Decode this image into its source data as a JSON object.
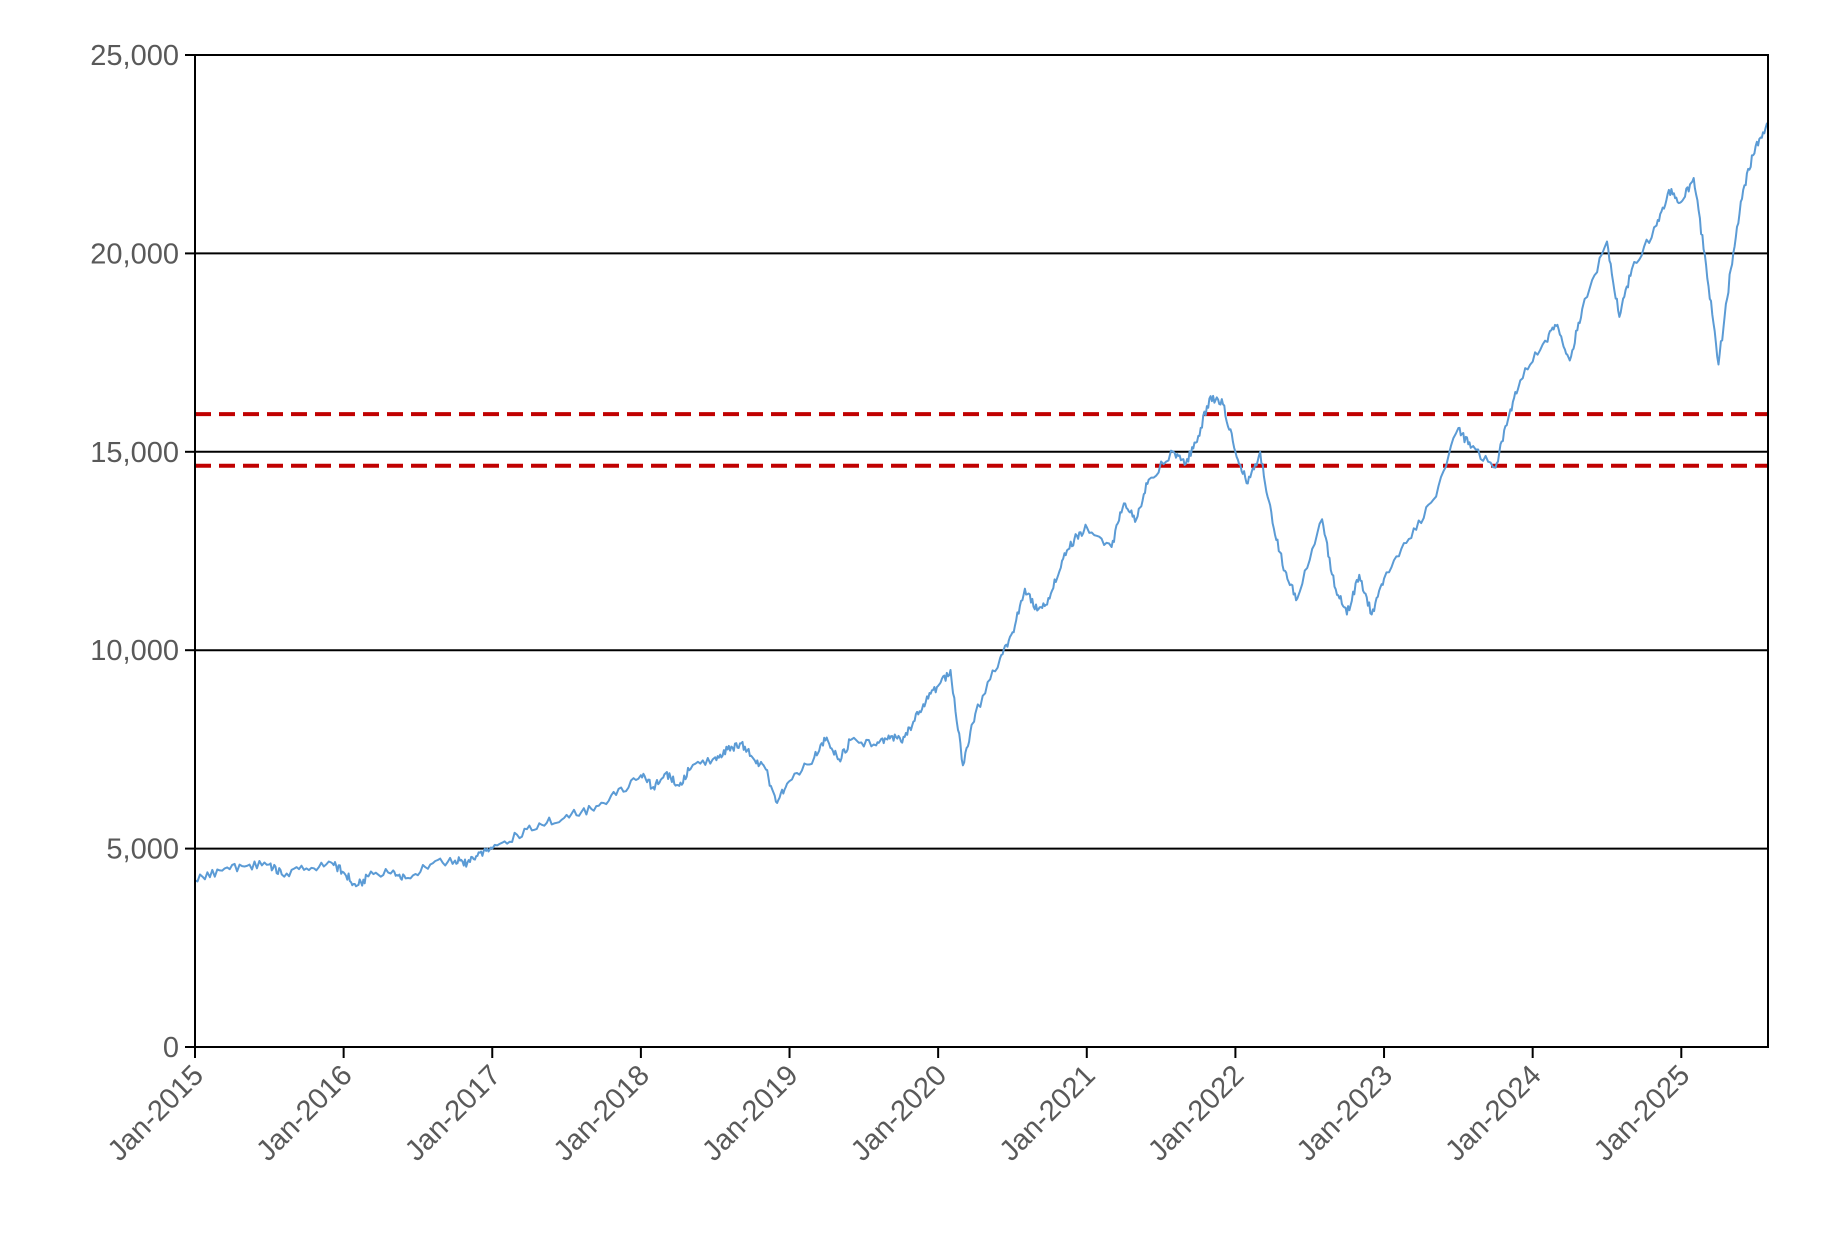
{
  "chart_data": {
    "type": "line",
    "title": "",
    "xlabel": "",
    "ylabel": "",
    "ylim": [
      0,
      25000
    ],
    "y_ticks": [
      0,
      5000,
      10000,
      15000,
      20000,
      25000
    ],
    "y_tick_labels": [
      "0",
      "5,000",
      "10,000",
      "15,000",
      "20,000",
      "25,000"
    ],
    "x_range": [
      "2015-01",
      "2025-08"
    ],
    "x_ticks": [
      "2015-01",
      "2016-01",
      "2017-01",
      "2018-01",
      "2019-01",
      "2020-01",
      "2021-01",
      "2022-01",
      "2023-01",
      "2024-01",
      "2025-01"
    ],
    "x_tick_labels": [
      "Jan-2015",
      "Jan-2016",
      "Jan-2017",
      "Jan-2018",
      "Jan-2019",
      "Jan-2020",
      "Jan-2021",
      "Jan-2022",
      "Jan-2023",
      "Jan-2024",
      "Jan-2025"
    ],
    "grid": "horizontal",
    "legend": "none",
    "series": [
      {
        "color": "#5b9bd5",
        "points": [
          [
            "2015-01",
            4200
          ],
          [
            "2015-03",
            4450
          ],
          [
            "2015-05",
            4550
          ],
          [
            "2015-07",
            4600
          ],
          [
            "2015-08",
            4350
          ],
          [
            "2015-10",
            4500
          ],
          [
            "2015-12",
            4650
          ],
          [
            "2016-01",
            4400
          ],
          [
            "2016-02",
            4050
          ],
          [
            "2016-03",
            4300
          ],
          [
            "2016-05",
            4450
          ],
          [
            "2016-06",
            4250
          ],
          [
            "2016-08",
            4600
          ],
          [
            "2016-10",
            4700
          ],
          [
            "2016-11",
            4650
          ],
          [
            "2016-12",
            4900
          ],
          [
            "2017-01",
            5000
          ],
          [
            "2017-03",
            5350
          ],
          [
            "2017-05",
            5600
          ],
          [
            "2017-07",
            5850
          ],
          [
            "2017-09",
            6000
          ],
          [
            "2017-11",
            6350
          ],
          [
            "2018-01",
            6850
          ],
          [
            "2018-02",
            6550
          ],
          [
            "2018-03",
            6900
          ],
          [
            "2018-04",
            6600
          ],
          [
            "2018-05",
            7000
          ],
          [
            "2018-07",
            7300
          ],
          [
            "2018-08",
            7500
          ],
          [
            "2018-09",
            7650
          ],
          [
            "2018-10",
            7300
          ],
          [
            "2018-11",
            7050
          ],
          [
            "2018-12",
            6150
          ],
          [
            "2019-01",
            6700
          ],
          [
            "2019-03",
            7300
          ],
          [
            "2019-04",
            7800
          ],
          [
            "2019-05",
            7250
          ],
          [
            "2019-06",
            7750
          ],
          [
            "2019-08",
            7600
          ],
          [
            "2019-09",
            7850
          ],
          [
            "2019-10",
            7700
          ],
          [
            "2019-11",
            8200
          ],
          [
            "2019-12",
            8700
          ],
          [
            "2020-01",
            9100
          ],
          [
            "2020-02",
            9500
          ],
          [
            "2020-03",
            7100
          ],
          [
            "2020-04",
            8400
          ],
          [
            "2020-06",
            9800
          ],
          [
            "2020-07",
            10450
          ],
          [
            "2020-08",
            11550
          ],
          [
            "2020-09",
            11000
          ],
          [
            "2020-10",
            11300
          ],
          [
            "2020-11",
            12250
          ],
          [
            "2020-12",
            12800
          ],
          [
            "2021-01",
            13100
          ],
          [
            "2021-03",
            12600
          ],
          [
            "2021-04",
            13700
          ],
          [
            "2021-05",
            13300
          ],
          [
            "2021-06",
            14300
          ],
          [
            "2021-08",
            15000
          ],
          [
            "2021-09",
            14700
          ],
          [
            "2021-10",
            15400
          ],
          [
            "2021-11",
            16400
          ],
          [
            "2021-12",
            16200
          ],
          [
            "2022-01",
            15000
          ],
          [
            "2022-02",
            14200
          ],
          [
            "2022-03",
            15000
          ],
          [
            "2022-04",
            13200
          ],
          [
            "2022-05",
            12000
          ],
          [
            "2022-06",
            11300
          ],
          [
            "2022-08",
            13300
          ],
          [
            "2022-09",
            11600
          ],
          [
            "2022-10",
            10900
          ],
          [
            "2022-11",
            11900
          ],
          [
            "2022-12",
            10900
          ],
          [
            "2023-01",
            11800
          ],
          [
            "2023-03",
            12800
          ],
          [
            "2023-05",
            13800
          ],
          [
            "2023-07",
            15600
          ],
          [
            "2023-08",
            15100
          ],
          [
            "2023-10",
            14600
          ],
          [
            "2023-11",
            15800
          ],
          [
            "2023-12",
            16800
          ],
          [
            "2024-02",
            17800
          ],
          [
            "2024-03",
            18200
          ],
          [
            "2024-04",
            17300
          ],
          [
            "2024-05",
            18600
          ],
          [
            "2024-07",
            20300
          ],
          [
            "2024-08",
            18400
          ],
          [
            "2024-09",
            19600
          ],
          [
            "2024-11",
            20700
          ],
          [
            "2024-12",
            21600
          ],
          [
            "2025-01",
            21300
          ],
          [
            "2025-02",
            21900
          ],
          [
            "2025-03",
            19700
          ],
          [
            "2025-04",
            17200
          ],
          [
            "2025-05",
            19600
          ],
          [
            "2025-06",
            21600
          ],
          [
            "2025-07",
            22700
          ],
          [
            "2025-08",
            23300
          ]
        ]
      }
    ],
    "reference_lines": [
      {
        "y": 15950,
        "style": "dashed",
        "color": "#c00000"
      },
      {
        "y": 14650,
        "style": "dashed",
        "color": "#c00000"
      }
    ]
  }
}
